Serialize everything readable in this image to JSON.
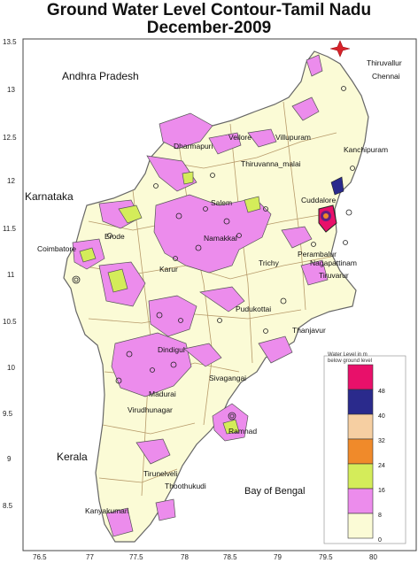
{
  "title": {
    "line1": "Ground Water Level Contour-Tamil Nadu",
    "line2": "December-2009"
  },
  "axes": {
    "y_ticks": [
      "13.5",
      "13",
      "12.5",
      "12",
      "11.5",
      "11",
      "10.5",
      "10",
      "9.5",
      "9",
      "8.5"
    ],
    "x_ticks": [
      "76.5",
      "77",
      "77.5",
      "78",
      "78.5",
      "79",
      "79.5",
      "80"
    ]
  },
  "neighbours": [
    "Andhra Pradesh",
    "Karnataka",
    "Kerala"
  ],
  "sea_label": "Bay of Bengal",
  "cities": [
    "Thiruvallur",
    "Chennai",
    "Kanchipuram",
    "Villupuram",
    "Dharmapuri",
    "Vellore",
    "Thiruvanna_malai",
    "Salem",
    "Cuddalore",
    "Namakkal",
    "Coimbatore",
    "Erode",
    "Karur",
    "Trichy",
    "Perambalur",
    "Nagapattinam",
    "Tiruvarur",
    "Pudukottai",
    "Thanjavur",
    "Dindigul",
    "Madurai",
    "Sivagangai",
    "Virudhunagar",
    "Ramnad",
    "Tirunelveli",
    "Thoothukudi",
    "Kanyakumari"
  ],
  "legend": {
    "title": "Water Level in m",
    "subtitle": "below ground level",
    "values": [
      "48",
      "40",
      "32",
      "24",
      "16",
      "8",
      "0"
    ],
    "colors": [
      "#e8106a",
      "#2a2a8c",
      "#f6cfa2",
      "#f08a2a",
      "#d4ec5a",
      "#ec8cec",
      "#fbfbd6"
    ]
  },
  "map_colors": {
    "land": "#fbfbd6",
    "zone": "#ec8cec",
    "shallow": "#d4ec5a",
    "deep": "#e8106a",
    "district_line": "#b79a6a",
    "outline": "#666666"
  },
  "north_icon": "compass-star-icon"
}
